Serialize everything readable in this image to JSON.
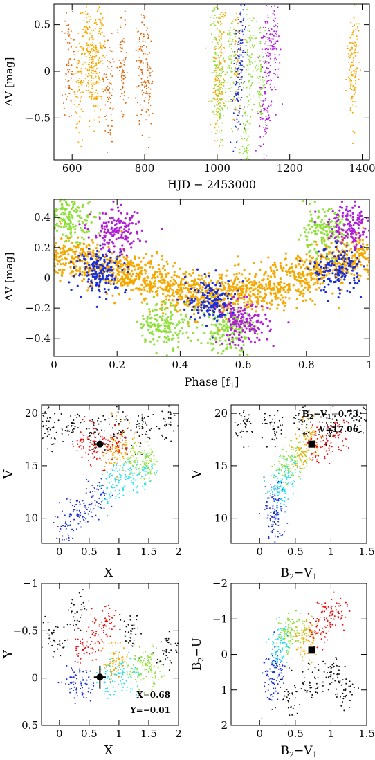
{
  "colors": {
    "black": "#111111",
    "blue": "#1a2fd6",
    "cyan": "#22e0f0",
    "green": "#8fe03a",
    "orange": "#f5a800",
    "dark_orange": "#e06a10",
    "red": "#ee1010",
    "magenta": "#b020d8"
  },
  "chart_data": [
    {
      "id": "lightcurve",
      "type": "scatter",
      "xlabel": "HJD − 2453000",
      "ylabel": "ΔV [mag]",
      "xlim": [
        550,
        1420
      ],
      "ylim": [
        0.72,
        -0.95
      ],
      "xticks": [
        600,
        800,
        1000,
        1200,
        1400
      ],
      "yticks": [
        0.5,
        0,
        -0.5
      ],
      "ytick_labels": [
        "0.5",
        "0",
        "−0.5"
      ],
      "series": [
        {
          "color": "orange",
          "x": [
            620,
            640,
            655,
            665,
            678,
            1000,
            1012,
            1055,
            1370,
            1380
          ],
          "y": [
            -0.2,
            0.3,
            0.1,
            0.0,
            0.25,
            -0.3,
            0.2,
            0.1,
            -0.1,
            0.2
          ]
        },
        {
          "color": "dark_orange",
          "x": [
            590,
            700,
            740,
            790,
            810
          ],
          "y": [
            0.1,
            -0.2,
            0.0,
            0.1,
            -0.1
          ]
        },
        {
          "color": "green",
          "x": [
            995,
            1010,
            1040,
            1080,
            1090,
            1120
          ],
          "y": [
            0.2,
            -0.3,
            0.1,
            -0.85,
            0.1,
            0.0
          ]
        },
        {
          "color": "blue",
          "x": [
            1055,
            1065
          ],
          "y": [
            -0.3,
            0.3
          ]
        },
        {
          "color": "magenta",
          "x": [
            1130,
            1140,
            1160
          ],
          "y": [
            -0.4,
            0.2,
            0.3
          ]
        }
      ]
    },
    {
      "id": "phased",
      "type": "scatter",
      "xlabel": "Phase [f1]",
      "ylabel": "ΔV [mag]",
      "xlim": [
        0,
        1
      ],
      "ylim": [
        0.52,
        -0.52
      ],
      "xticks": [
        0,
        0.2,
        0.4,
        0.6,
        0.8,
        1
      ],
      "xtick_labels": [
        "0",
        "0.2",
        "0.4",
        "0.6",
        "0.8",
        "1"
      ],
      "yticks": [
        0.4,
        0.2,
        0,
        -0.2,
        -0.4
      ],
      "ytick_labels": [
        "0.4",
        "0.2",
        "0",
        "−0.2",
        "−0.4"
      ],
      "series": [
        {
          "color": "orange",
          "x": [
            0.0,
            0.1,
            0.2,
            0.3,
            0.4,
            0.5,
            0.6,
            0.7,
            0.8,
            0.9,
            1.0
          ],
          "y": [
            0.15,
            0.1,
            0.05,
            0.0,
            -0.08,
            -0.12,
            -0.1,
            -0.05,
            0.02,
            0.1,
            0.15
          ]
        },
        {
          "color": "green",
          "x": [
            0.05,
            0.35,
            0.55,
            0.85
          ],
          "y": [
            0.4,
            -0.3,
            -0.35,
            0.3
          ]
        },
        {
          "color": "blue",
          "x": [
            0.15,
            0.5,
            0.9
          ],
          "y": [
            0.05,
            -0.15,
            0.05
          ]
        },
        {
          "color": "magenta",
          "x": [
            0.2,
            0.6,
            0.95
          ],
          "y": [
            0.3,
            -0.3,
            0.35
          ]
        }
      ]
    },
    {
      "id": "cmd_vx",
      "type": "scatter",
      "xlabel": "X",
      "ylabel": "V",
      "xlim": [
        -0.3,
        2.0
      ],
      "ylim": [
        20.8,
        7.6
      ],
      "xticks": [
        0,
        0.5,
        1,
        1.5,
        2
      ],
      "xtick_labels": [
        "0",
        "0.5",
        "1",
        "1.5",
        "2"
      ],
      "yticks": [
        10,
        15,
        20
      ],
      "ytick_labels": [
        "10",
        "15",
        "20"
      ],
      "marker": {
        "x": 0.68,
        "y": 17.06,
        "xerr": 0.1,
        "yerr": 0.2
      },
      "series": [
        {
          "color": "blue",
          "x": [
            0.1,
            0.3,
            0.5,
            0.7
          ],
          "y": [
            9.2,
            10.3,
            11.3,
            12.3
          ]
        },
        {
          "color": "cyan",
          "x": [
            0.8,
            1.0,
            1.2,
            1.4
          ],
          "y": [
            12.9,
            13.6,
            14.3,
            14.6
          ]
        },
        {
          "color": "green",
          "x": [
            1.2,
            1.4,
            1.5
          ],
          "y": [
            15.8,
            15.4,
            15.2
          ]
        },
        {
          "color": "orange",
          "x": [
            0.9,
            1.0,
            1.1
          ],
          "y": [
            16.0,
            16.5,
            17.0
          ]
        },
        {
          "color": "red",
          "x": [
            0.4,
            0.6,
            0.8,
            1.0
          ],
          "y": [
            17.5,
            17.0,
            16.8,
            17.3
          ]
        },
        {
          "color": "black",
          "x": [
            -0.2,
            0.2,
            0.6,
            1.0,
            1.4,
            1.8
          ],
          "y": [
            18.5,
            18.8,
            18.2,
            19.0,
            18.6,
            18.9
          ]
        }
      ]
    },
    {
      "id": "cmd_vbv",
      "type": "scatter",
      "xlabel": "B2−V1",
      "ylabel": "V",
      "xlim": [
        -0.4,
        1.5
      ],
      "ylim": [
        20.8,
        7.6
      ],
      "xticks": [
        0,
        0.5,
        1,
        1.5
      ],
      "xtick_labels": [
        "0",
        "0.5",
        "1",
        "1.5"
      ],
      "yticks": [
        10,
        15,
        20
      ],
      "ytick_labels": [
        "10",
        "15",
        "20"
      ],
      "marker": {
        "x": 0.73,
        "y": 17.06
      },
      "annotation": [
        "B2−V1=0.73",
        "V=17.06"
      ],
      "series": [
        {
          "color": "blue",
          "x": [
            0.18,
            0.2,
            0.22
          ],
          "y": [
            9.2,
            10.5,
            11.8
          ]
        },
        {
          "color": "cyan",
          "x": [
            0.25,
            0.3,
            0.4
          ],
          "y": [
            12.5,
            13.5,
            14.3
          ]
        },
        {
          "color": "green",
          "x": [
            0.35,
            0.45,
            0.55
          ],
          "y": [
            15.0,
            15.6,
            16.0
          ]
        },
        {
          "color": "orange",
          "x": [
            0.62,
            0.68,
            0.72
          ],
          "y": [
            16.2,
            17.2,
            18.0
          ]
        },
        {
          "color": "red",
          "x": [
            0.8,
            0.95,
            1.1
          ],
          "y": [
            16.8,
            17.4,
            17.9
          ]
        },
        {
          "color": "black",
          "x": [
            -0.2,
            0.2,
            0.6,
            1.0,
            1.4
          ],
          "y": [
            19.0,
            18.5,
            19.2,
            18.8,
            19.3
          ]
        }
      ]
    },
    {
      "id": "ccd_xy",
      "type": "scatter",
      "xlabel": "X",
      "ylabel": "Y",
      "xlim": [
        -0.3,
        2.0
      ],
      "ylim": [
        -1.0,
        0.5
      ],
      "xticks": [
        0,
        0.5,
        1,
        1.5,
        2
      ],
      "xtick_labels": [
        "0",
        "0.5",
        "1",
        "1.5",
        "2"
      ],
      "yticks": [
        -1,
        -0.5,
        0,
        0.5
      ],
      "ytick_labels": [
        "−1",
        "−0.5",
        "0",
        "0.5"
      ],
      "marker": {
        "x": 0.68,
        "y": -0.01,
        "xerr": 0.1,
        "yerr": 0.12
      },
      "annotation": [
        "X=0.68",
        "Y=−0.01"
      ],
      "series": [
        {
          "color": "blue",
          "x": [
            0.2,
            0.4
          ],
          "y": [
            0.05,
            0.02
          ]
        },
        {
          "color": "cyan",
          "x": [
            0.8,
            1.0,
            1.2
          ],
          "y": [
            0.0,
            -0.05,
            -0.02
          ]
        },
        {
          "color": "green",
          "x": [
            1.3,
            1.45,
            1.6
          ],
          "y": [
            -0.1,
            -0.15,
            -0.05
          ]
        },
        {
          "color": "orange",
          "x": [
            0.9,
            1.0
          ],
          "y": [
            -0.15,
            -0.2
          ]
        },
        {
          "color": "red",
          "x": [
            0.4,
            0.6,
            0.8
          ],
          "y": [
            -0.3,
            -0.45,
            -0.6
          ]
        },
        {
          "color": "black",
          "x": [
            -0.1,
            0.3,
            1.2,
            1.8
          ],
          "y": [
            -0.4,
            -0.7,
            -0.5,
            -0.3
          ]
        }
      ]
    },
    {
      "id": "ccd_ubv",
      "type": "scatter",
      "xlabel": "B2−V1",
      "ylabel": "B2−U",
      "xlim": [
        -0.4,
        1.5
      ],
      "ylim": [
        -2.0,
        2.0
      ],
      "xticks": [
        0,
        0.5,
        1,
        1.5
      ],
      "xtick_labels": [
        "0",
        "0.5",
        "1",
        "1.5"
      ],
      "yticks": [
        -2,
        -1,
        0,
        1,
        2
      ],
      "ytick_labels": [
        "−2",
        "−1",
        "0",
        "1",
        "2"
      ],
      "marker": {
        "x": 0.73,
        "y": -0.12
      },
      "series": [
        {
          "color": "blue",
          "x": [
            0.18,
            0.2,
            0.22
          ],
          "y": [
            0.8,
            0.5,
            0.2
          ]
        },
        {
          "color": "cyan",
          "x": [
            0.25,
            0.3
          ],
          "y": [
            -0.1,
            -0.4
          ]
        },
        {
          "color": "green",
          "x": [
            0.35,
            0.45,
            0.55
          ],
          "y": [
            -0.65,
            -0.7,
            -0.6
          ]
        },
        {
          "color": "orange",
          "x": [
            0.62,
            0.68
          ],
          "y": [
            -0.45,
            -0.4
          ]
        },
        {
          "color": "red",
          "x": [
            0.8,
            0.95,
            1.1
          ],
          "y": [
            -0.6,
            -0.95,
            -1.2
          ]
        },
        {
          "color": "black",
          "x": [
            0.4,
            0.7,
            1.0,
            1.2
          ],
          "y": [
            1.3,
            0.8,
            0.5,
            1.0
          ]
        }
      ]
    }
  ]
}
